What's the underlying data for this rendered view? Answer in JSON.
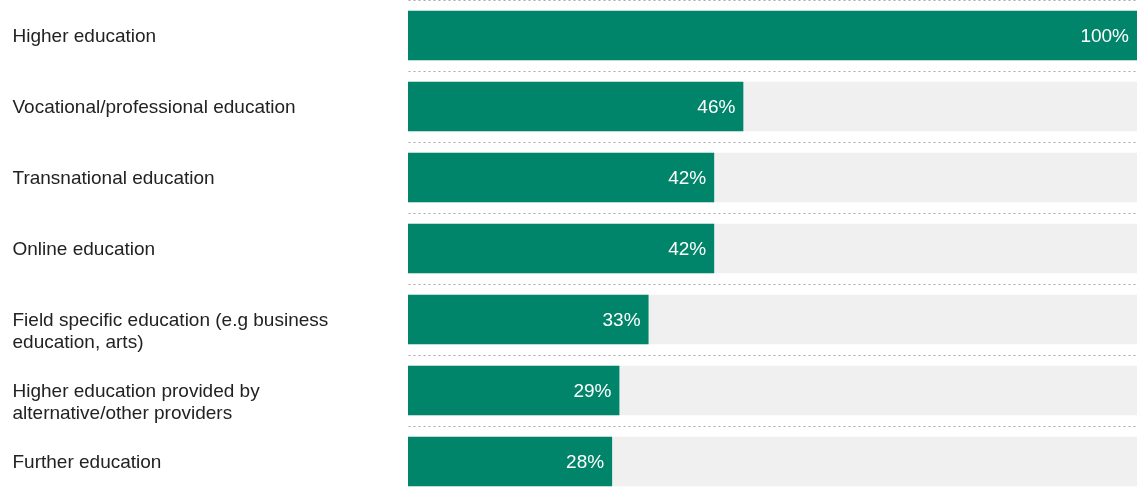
{
  "chart_data": {
    "type": "bar",
    "orientation": "horizontal",
    "categories": [
      "Higher education",
      "Vocational/professional education",
      "Transnational education",
      "Online education",
      "Field specific education (e.g business education, arts)",
      "Higher education provided by alternative/other providers",
      "Further education"
    ],
    "values": [
      100,
      46,
      42,
      42,
      33,
      29,
      28
    ],
    "value_labels": [
      "100%",
      "46%",
      "42%",
      "42%",
      "33%",
      "29%",
      "28%"
    ],
    "color": "#00856a",
    "xlim": [
      0,
      100
    ],
    "tick_labels": "y",
    "grid": "y",
    "line_style": "dotted",
    "bands": [
      {
        "axis": "x",
        "from": 0,
        "to": 100,
        "color": "#f0f0f0"
      }
    ]
  }
}
